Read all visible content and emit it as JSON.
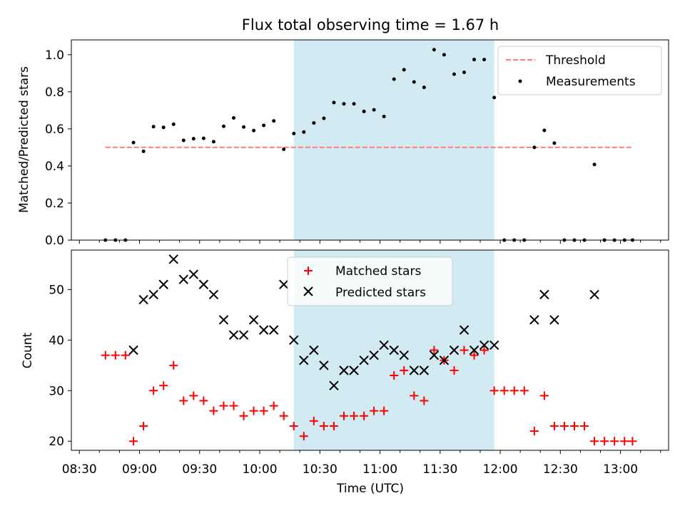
{
  "figure": {
    "title": "Flux total observing time = 1.67 h",
    "xlabel": "Time (UTC)",
    "x_tick_labels": [
      "08:30",
      "09:00",
      "09:30",
      "10:00",
      "10:30",
      "11:00",
      "11:30",
      "12:00",
      "12:30",
      "13:00"
    ]
  },
  "chart_data": [
    {
      "type": "scatter",
      "panel": "top",
      "title": "Flux total observing time = 1.67 h",
      "xlabel": "",
      "ylabel": "Matched/Predicted stars",
      "x_unit": "UTC time",
      "xlim": [
        "08:26",
        "13:24"
      ],
      "ylim": [
        0,
        1.08
      ],
      "y_ticks": [
        "0.0",
        "0.2",
        "0.4",
        "0.6",
        "0.8",
        "1.0"
      ],
      "x_ticks": [
        "08:30",
        "09:00",
        "09:30",
        "10:00",
        "10:30",
        "11:00",
        "11:30",
        "12:00",
        "12:30",
        "13:00"
      ],
      "grid": false,
      "legend_position": "top-right",
      "shaded_region": {
        "x_start": "10:17",
        "x_end": "11:57",
        "color": "#add8e6"
      },
      "threshold": {
        "name": "Threshold",
        "value": 0.5,
        "x_start": "08:43",
        "x_end": "13:06",
        "color": "#ff7f7f"
      },
      "series": [
        {
          "name": "Measurements",
          "color": "#000000",
          "points": [
            [
              "08:43",
              0.0
            ],
            [
              "08:48",
              0.0
            ],
            [
              "08:53",
              0.0
            ],
            [
              "08:57",
              0.526
            ],
            [
              "09:02",
              0.479
            ],
            [
              "09:07",
              0.612
            ],
            [
              "09:12",
              0.608
            ],
            [
              "09:17",
              0.625
            ],
            [
              "09:22",
              0.538
            ],
            [
              "09:27",
              0.547
            ],
            [
              "09:32",
              0.549
            ],
            [
              "09:37",
              0.531
            ],
            [
              "09:42",
              0.614
            ],
            [
              "09:47",
              0.659
            ],
            [
              "09:52",
              0.61
            ],
            [
              "09:57",
              0.591
            ],
            [
              "10:02",
              0.619
            ],
            [
              "10:07",
              0.643
            ],
            [
              "10:12",
              0.49
            ],
            [
              "10:17",
              0.575
            ],
            [
              "10:22",
              0.583
            ],
            [
              "10:27",
              0.632
            ],
            [
              "10:32",
              0.657
            ],
            [
              "10:37",
              0.742
            ],
            [
              "10:42",
              0.735
            ],
            [
              "10:47",
              0.735
            ],
            [
              "10:52",
              0.694
            ],
            [
              "10:57",
              0.703
            ],
            [
              "11:02",
              0.667
            ],
            [
              "11:07",
              0.868
            ],
            [
              "11:12",
              0.919
            ],
            [
              "11:17",
              0.853
            ],
            [
              "11:22",
              0.824
            ],
            [
              "11:27",
              1.027
            ],
            [
              "11:32",
              1.0
            ],
            [
              "11:37",
              0.895
            ],
            [
              "11:42",
              0.905
            ],
            [
              "11:47",
              0.974
            ],
            [
              "11:52",
              0.974
            ],
            [
              "11:57",
              0.769
            ],
            [
              "12:02",
              0.0
            ],
            [
              "12:07",
              0.0
            ],
            [
              "12:12",
              0.0
            ],
            [
              "12:17",
              0.5
            ],
            [
              "12:22",
              0.592
            ],
            [
              "12:27",
              0.523
            ],
            [
              "12:32",
              0.0
            ],
            [
              "12:37",
              0.0
            ],
            [
              "12:42",
              0.0
            ],
            [
              "12:47",
              0.408
            ],
            [
              "12:52",
              0.0
            ],
            [
              "12:57",
              0.0
            ],
            [
              "13:02",
              0.0
            ],
            [
              "13:06",
              0.0
            ]
          ]
        }
      ]
    },
    {
      "type": "scatter",
      "panel": "bottom",
      "title": "",
      "xlabel": "Time (UTC)",
      "ylabel": "Count",
      "x_unit": "UTC time",
      "xlim": [
        "08:26",
        "13:24"
      ],
      "ylim": [
        18.2,
        57.8
      ],
      "y_ticks": [
        "20",
        "30",
        "40",
        "50"
      ],
      "x_ticks": [
        "08:30",
        "09:00",
        "09:30",
        "10:00",
        "10:30",
        "11:00",
        "11:30",
        "12:00",
        "12:30",
        "13:00"
      ],
      "grid": false,
      "legend_position": "top-center",
      "shaded_region": {
        "x_start": "10:17",
        "x_end": "11:57",
        "color": "#add8e6"
      },
      "series": [
        {
          "name": "Matched stars",
          "marker": "plus",
          "color": "#ff0000",
          "points": [
            [
              "08:43",
              37
            ],
            [
              "08:48",
              37
            ],
            [
              "08:53",
              37
            ],
            [
              "08:57",
              20
            ],
            [
              "09:02",
              23
            ],
            [
              "09:07",
              30
            ],
            [
              "09:12",
              31
            ],
            [
              "09:17",
              35
            ],
            [
              "09:22",
              28
            ],
            [
              "09:27",
              29
            ],
            [
              "09:32",
              28
            ],
            [
              "09:37",
              26
            ],
            [
              "09:42",
              27
            ],
            [
              "09:47",
              27
            ],
            [
              "09:52",
              25
            ],
            [
              "09:57",
              26
            ],
            [
              "10:02",
              26
            ],
            [
              "10:07",
              27
            ],
            [
              "10:12",
              25
            ],
            [
              "10:17",
              23
            ],
            [
              "10:22",
              21
            ],
            [
              "10:27",
              24
            ],
            [
              "10:32",
              23
            ],
            [
              "10:37",
              23
            ],
            [
              "10:42",
              25
            ],
            [
              "10:47",
              25
            ],
            [
              "10:52",
              25
            ],
            [
              "10:57",
              26
            ],
            [
              "11:02",
              26
            ],
            [
              "11:07",
              33
            ],
            [
              "11:12",
              34
            ],
            [
              "11:17",
              29
            ],
            [
              "11:22",
              28
            ],
            [
              "11:27",
              38
            ],
            [
              "11:32",
              36
            ],
            [
              "11:37",
              34
            ],
            [
              "11:42",
              38
            ],
            [
              "11:47",
              37
            ],
            [
              "11:52",
              38
            ],
            [
              "11:57",
              30
            ],
            [
              "12:02",
              30
            ],
            [
              "12:07",
              30
            ],
            [
              "12:12",
              30
            ],
            [
              "12:17",
              22
            ],
            [
              "12:22",
              29
            ],
            [
              "12:27",
              23
            ],
            [
              "12:32",
              23
            ],
            [
              "12:37",
              23
            ],
            [
              "12:42",
              23
            ],
            [
              "12:47",
              20
            ],
            [
              "12:52",
              20
            ],
            [
              "12:57",
              20
            ],
            [
              "13:02",
              20
            ],
            [
              "13:06",
              20
            ]
          ]
        },
        {
          "name": "Predicted stars",
          "marker": "x",
          "color": "#000000",
          "points": [
            [
              "08:57",
              38
            ],
            [
              "09:02",
              48
            ],
            [
              "09:07",
              49
            ],
            [
              "09:12",
              51
            ],
            [
              "09:17",
              56
            ],
            [
              "09:22",
              52
            ],
            [
              "09:27",
              53
            ],
            [
              "09:32",
              51
            ],
            [
              "09:37",
              49
            ],
            [
              "09:42",
              44
            ],
            [
              "09:47",
              41
            ],
            [
              "09:52",
              41
            ],
            [
              "09:57",
              44
            ],
            [
              "10:02",
              42
            ],
            [
              "10:07",
              42
            ],
            [
              "10:12",
              51
            ],
            [
              "10:17",
              40
            ],
            [
              "10:22",
              36
            ],
            [
              "10:27",
              38
            ],
            [
              "10:32",
              35
            ],
            [
              "10:37",
              31
            ],
            [
              "10:42",
              34
            ],
            [
              "10:47",
              34
            ],
            [
              "10:52",
              36
            ],
            [
              "10:57",
              37
            ],
            [
              "11:02",
              39
            ],
            [
              "11:07",
              38
            ],
            [
              "11:12",
              37
            ],
            [
              "11:17",
              34
            ],
            [
              "11:22",
              34
            ],
            [
              "11:27",
              37
            ],
            [
              "11:32",
              36
            ],
            [
              "11:37",
              38
            ],
            [
              "11:42",
              42
            ],
            [
              "11:47",
              38
            ],
            [
              "11:52",
              39
            ],
            [
              "11:57",
              39
            ],
            [
              "12:17",
              44
            ],
            [
              "12:22",
              49
            ],
            [
              "12:27",
              44
            ],
            [
              "12:47",
              49
            ]
          ]
        }
      ]
    }
  ]
}
